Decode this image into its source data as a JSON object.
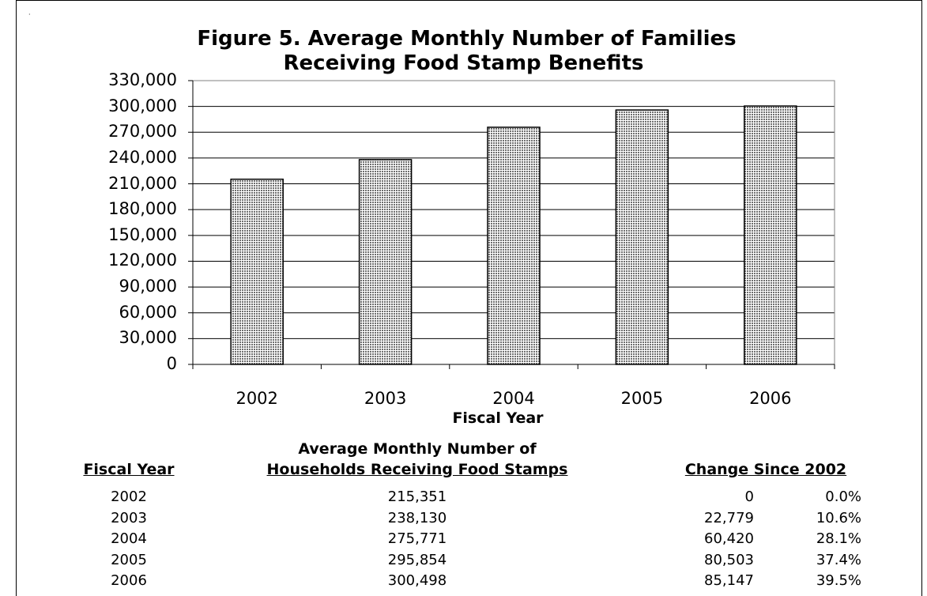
{
  "figure": {
    "title_line1": "Figure 5.  Average Monthly Number of Families",
    "title_line2": "Receiving Food Stamp Benefits",
    "xlabel": "Fiscal Year"
  },
  "chart_data": {
    "type": "bar",
    "title": "Figure 5.  Average Monthly Number of Families Receiving Food Stamp Benefits",
    "xlabel": "Fiscal Year",
    "ylabel": "",
    "categories": [
      "2002",
      "2003",
      "2004",
      "2005",
      "2006"
    ],
    "values": [
      215351,
      238130,
      275771,
      295854,
      300498
    ],
    "ylim": [
      0,
      330000
    ],
    "yticks": [
      "0",
      "30,000",
      "60,000",
      "90,000",
      "120,000",
      "150,000",
      "180,000",
      "210,000",
      "240,000",
      "270,000",
      "300,000",
      "330,000"
    ],
    "grid": true,
    "legend": "none",
    "bar_pattern": "dotted",
    "colors": {
      "bar_fill": "#9a9a9a",
      "bar_stroke": "#000000",
      "grid": "#000000"
    }
  },
  "table": {
    "header_fiscal_year": "Fiscal Year",
    "header_avg_line1": "Average Monthly Number of",
    "header_avg_line2": "Households Receiving Food Stamps",
    "header_change": "Change Since 2002",
    "rows": [
      {
        "year": "2002",
        "households": "215,351",
        "change": "0",
        "pct": "0.0%"
      },
      {
        "year": "2003",
        "households": "238,130",
        "change": "22,779",
        "pct": "10.6%"
      },
      {
        "year": "2004",
        "households": "275,771",
        "change": "60,420",
        "pct": "28.1%"
      },
      {
        "year": "2005",
        "households": "295,854",
        "change": "80,503",
        "pct": "37.4%"
      },
      {
        "year": "2006",
        "households": "300,498",
        "change": "85,147",
        "pct": "39.5%"
      }
    ]
  }
}
